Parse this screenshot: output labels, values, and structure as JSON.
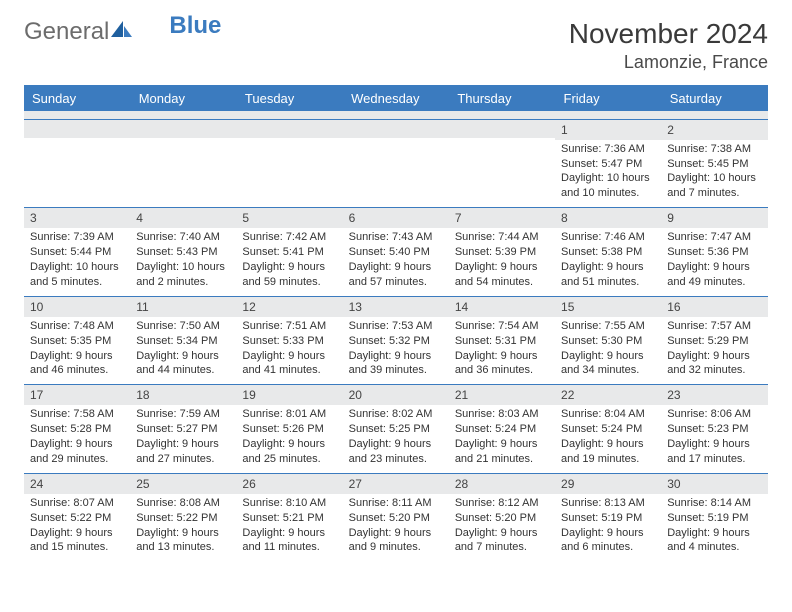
{
  "logo": {
    "text_gray": "General",
    "text_blue": "Blue"
  },
  "title": "November 2024",
  "location": "Lamonzie, France",
  "colors": {
    "header_bg": "#3b7bbf",
    "header_text": "#ffffff",
    "daynum_bg": "#e8e9ea",
    "border": "#3b7bbf",
    "body_text": "#333333"
  },
  "day_names": [
    "Sunday",
    "Monday",
    "Tuesday",
    "Wednesday",
    "Thursday",
    "Friday",
    "Saturday"
  ],
  "weeks": [
    [
      {
        "n": "",
        "lines": []
      },
      {
        "n": "",
        "lines": []
      },
      {
        "n": "",
        "lines": []
      },
      {
        "n": "",
        "lines": []
      },
      {
        "n": "",
        "lines": []
      },
      {
        "n": "1",
        "lines": [
          "Sunrise: 7:36 AM",
          "Sunset: 5:47 PM",
          "Daylight: 10 hours and 10 minutes."
        ]
      },
      {
        "n": "2",
        "lines": [
          "Sunrise: 7:38 AM",
          "Sunset: 5:45 PM",
          "Daylight: 10 hours and 7 minutes."
        ]
      }
    ],
    [
      {
        "n": "3",
        "lines": [
          "Sunrise: 7:39 AM",
          "Sunset: 5:44 PM",
          "Daylight: 10 hours and 5 minutes."
        ]
      },
      {
        "n": "4",
        "lines": [
          "Sunrise: 7:40 AM",
          "Sunset: 5:43 PM",
          "Daylight: 10 hours and 2 minutes."
        ]
      },
      {
        "n": "5",
        "lines": [
          "Sunrise: 7:42 AM",
          "Sunset: 5:41 PM",
          "Daylight: 9 hours and 59 minutes."
        ]
      },
      {
        "n": "6",
        "lines": [
          "Sunrise: 7:43 AM",
          "Sunset: 5:40 PM",
          "Daylight: 9 hours and 57 minutes."
        ]
      },
      {
        "n": "7",
        "lines": [
          "Sunrise: 7:44 AM",
          "Sunset: 5:39 PM",
          "Daylight: 9 hours and 54 minutes."
        ]
      },
      {
        "n": "8",
        "lines": [
          "Sunrise: 7:46 AM",
          "Sunset: 5:38 PM",
          "Daylight: 9 hours and 51 minutes."
        ]
      },
      {
        "n": "9",
        "lines": [
          "Sunrise: 7:47 AM",
          "Sunset: 5:36 PM",
          "Daylight: 9 hours and 49 minutes."
        ]
      }
    ],
    [
      {
        "n": "10",
        "lines": [
          "Sunrise: 7:48 AM",
          "Sunset: 5:35 PM",
          "Daylight: 9 hours and 46 minutes."
        ]
      },
      {
        "n": "11",
        "lines": [
          "Sunrise: 7:50 AM",
          "Sunset: 5:34 PM",
          "Daylight: 9 hours and 44 minutes."
        ]
      },
      {
        "n": "12",
        "lines": [
          "Sunrise: 7:51 AM",
          "Sunset: 5:33 PM",
          "Daylight: 9 hours and 41 minutes."
        ]
      },
      {
        "n": "13",
        "lines": [
          "Sunrise: 7:53 AM",
          "Sunset: 5:32 PM",
          "Daylight: 9 hours and 39 minutes."
        ]
      },
      {
        "n": "14",
        "lines": [
          "Sunrise: 7:54 AM",
          "Sunset: 5:31 PM",
          "Daylight: 9 hours and 36 minutes."
        ]
      },
      {
        "n": "15",
        "lines": [
          "Sunrise: 7:55 AM",
          "Sunset: 5:30 PM",
          "Daylight: 9 hours and 34 minutes."
        ]
      },
      {
        "n": "16",
        "lines": [
          "Sunrise: 7:57 AM",
          "Sunset: 5:29 PM",
          "Daylight: 9 hours and 32 minutes."
        ]
      }
    ],
    [
      {
        "n": "17",
        "lines": [
          "Sunrise: 7:58 AM",
          "Sunset: 5:28 PM",
          "Daylight: 9 hours and 29 minutes."
        ]
      },
      {
        "n": "18",
        "lines": [
          "Sunrise: 7:59 AM",
          "Sunset: 5:27 PM",
          "Daylight: 9 hours and 27 minutes."
        ]
      },
      {
        "n": "19",
        "lines": [
          "Sunrise: 8:01 AM",
          "Sunset: 5:26 PM",
          "Daylight: 9 hours and 25 minutes."
        ]
      },
      {
        "n": "20",
        "lines": [
          "Sunrise: 8:02 AM",
          "Sunset: 5:25 PM",
          "Daylight: 9 hours and 23 minutes."
        ]
      },
      {
        "n": "21",
        "lines": [
          "Sunrise: 8:03 AM",
          "Sunset: 5:24 PM",
          "Daylight: 9 hours and 21 minutes."
        ]
      },
      {
        "n": "22",
        "lines": [
          "Sunrise: 8:04 AM",
          "Sunset: 5:24 PM",
          "Daylight: 9 hours and 19 minutes."
        ]
      },
      {
        "n": "23",
        "lines": [
          "Sunrise: 8:06 AM",
          "Sunset: 5:23 PM",
          "Daylight: 9 hours and 17 minutes."
        ]
      }
    ],
    [
      {
        "n": "24",
        "lines": [
          "Sunrise: 8:07 AM",
          "Sunset: 5:22 PM",
          "Daylight: 9 hours and 15 minutes."
        ]
      },
      {
        "n": "25",
        "lines": [
          "Sunrise: 8:08 AM",
          "Sunset: 5:22 PM",
          "Daylight: 9 hours and 13 minutes."
        ]
      },
      {
        "n": "26",
        "lines": [
          "Sunrise: 8:10 AM",
          "Sunset: 5:21 PM",
          "Daylight: 9 hours and 11 minutes."
        ]
      },
      {
        "n": "27",
        "lines": [
          "Sunrise: 8:11 AM",
          "Sunset: 5:20 PM",
          "Daylight: 9 hours and 9 minutes."
        ]
      },
      {
        "n": "28",
        "lines": [
          "Sunrise: 8:12 AM",
          "Sunset: 5:20 PM",
          "Daylight: 9 hours and 7 minutes."
        ]
      },
      {
        "n": "29",
        "lines": [
          "Sunrise: 8:13 AM",
          "Sunset: 5:19 PM",
          "Daylight: 9 hours and 6 minutes."
        ]
      },
      {
        "n": "30",
        "lines": [
          "Sunrise: 8:14 AM",
          "Sunset: 5:19 PM",
          "Daylight: 9 hours and 4 minutes."
        ]
      }
    ]
  ]
}
